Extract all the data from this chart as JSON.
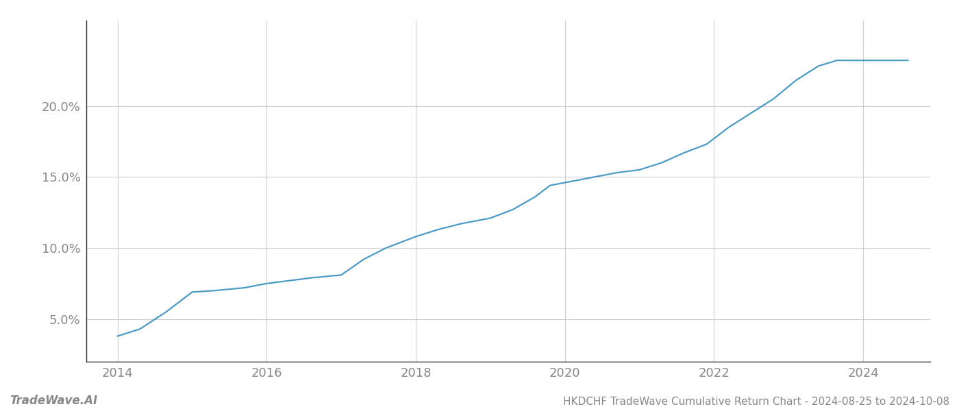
{
  "title": "HKDCHF TradeWave Cumulative Return Chart - 2024-08-25 to 2024-10-08",
  "watermark": "TradeWave.AI",
  "line_color": "#4a9cc7",
  "background_color": "#ffffff",
  "grid_color": "#d0d0d0",
  "x_years": [
    2014.0,
    2014.3,
    2014.65,
    2015.0,
    2015.3,
    2015.7,
    2016.0,
    2016.3,
    2016.6,
    2017.0,
    2017.3,
    2017.6,
    2018.0,
    2018.3,
    2018.6,
    2019.0,
    2019.3,
    2019.6,
    2019.8,
    2020.0,
    2020.2,
    2020.4,
    2020.7,
    2021.0,
    2021.3,
    2021.6,
    2021.9,
    2022.2,
    2022.5,
    2022.8,
    2023.1,
    2023.4,
    2023.65,
    2024.0,
    2024.6
  ],
  "y_values": [
    3.8,
    4.3,
    5.5,
    6.9,
    7.0,
    7.2,
    7.5,
    7.7,
    7.9,
    8.1,
    9.2,
    10.0,
    10.8,
    11.3,
    11.7,
    12.1,
    12.7,
    13.6,
    14.4,
    14.6,
    14.8,
    15.0,
    15.3,
    15.5,
    16.0,
    16.7,
    17.3,
    18.5,
    19.5,
    20.5,
    21.8,
    22.8,
    23.2,
    23.2,
    23.2
  ],
  "ylim": [
    2.0,
    26.0
  ],
  "yticks": [
    5.0,
    10.0,
    15.0,
    20.0
  ],
  "xticks": [
    2014,
    2016,
    2018,
    2020,
    2022,
    2024
  ],
  "xlim_left": 2013.58,
  "xlim_right": 2024.9,
  "tick_label_color": "#888888",
  "spine_color": "#333333",
  "tick_fontsize": 13,
  "title_fontsize": 11,
  "watermark_fontsize": 12
}
